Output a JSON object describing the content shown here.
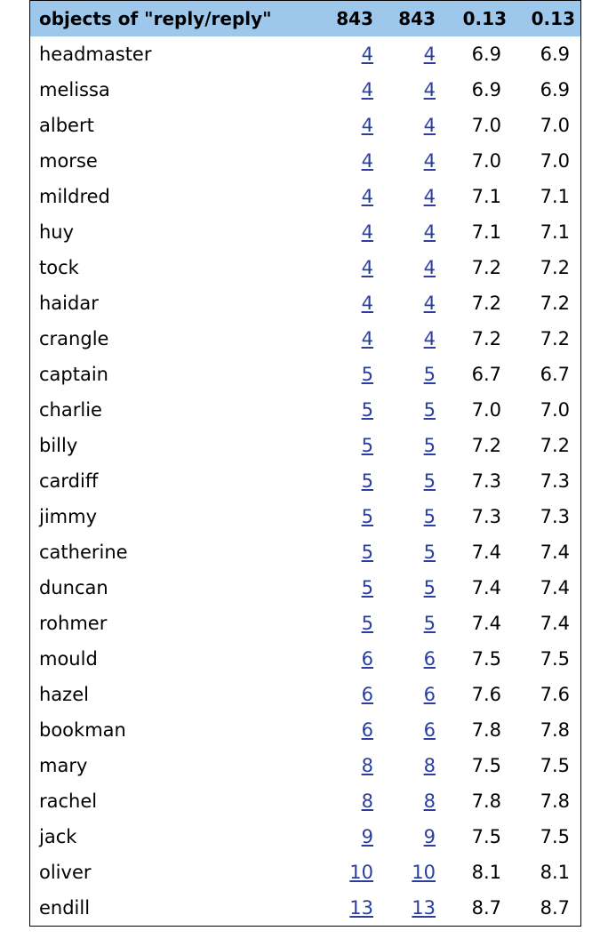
{
  "table": {
    "headers": [
      "objects of \"reply/reply\"",
      "843",
      "843",
      "0.13",
      "0.13"
    ],
    "link_color": "#2a3ea0",
    "header_bg": "#9ec7ec",
    "rows": [
      {
        "name": "headmaster",
        "n1": "4",
        "n2": "4",
        "v1": "6.9",
        "v2": "6.9"
      },
      {
        "name": "melissa",
        "n1": "4",
        "n2": "4",
        "v1": "6.9",
        "v2": "6.9"
      },
      {
        "name": "albert",
        "n1": "4",
        "n2": "4",
        "v1": "7.0",
        "v2": "7.0"
      },
      {
        "name": "morse",
        "n1": "4",
        "n2": "4",
        "v1": "7.0",
        "v2": "7.0"
      },
      {
        "name": "mildred",
        "n1": "4",
        "n2": "4",
        "v1": "7.1",
        "v2": "7.1"
      },
      {
        "name": "huy",
        "n1": "4",
        "n2": "4",
        "v1": "7.1",
        "v2": "7.1"
      },
      {
        "name": "tock",
        "n1": "4",
        "n2": "4",
        "v1": "7.2",
        "v2": "7.2"
      },
      {
        "name": "haidar",
        "n1": "4",
        "n2": "4",
        "v1": "7.2",
        "v2": "7.2"
      },
      {
        "name": "crangle",
        "n1": "4",
        "n2": "4",
        "v1": "7.2",
        "v2": "7.2"
      },
      {
        "name": "captain",
        "n1": "5",
        "n2": "5",
        "v1": "6.7",
        "v2": "6.7"
      },
      {
        "name": "charlie",
        "n1": "5",
        "n2": "5",
        "v1": "7.0",
        "v2": "7.0"
      },
      {
        "name": "billy",
        "n1": "5",
        "n2": "5",
        "v1": "7.2",
        "v2": "7.2"
      },
      {
        "name": "cardiff",
        "n1": "5",
        "n2": "5",
        "v1": "7.3",
        "v2": "7.3"
      },
      {
        "name": "jimmy",
        "n1": "5",
        "n2": "5",
        "v1": "7.3",
        "v2": "7.3"
      },
      {
        "name": "catherine",
        "n1": "5",
        "n2": "5",
        "v1": "7.4",
        "v2": "7.4"
      },
      {
        "name": "duncan",
        "n1": "5",
        "n2": "5",
        "v1": "7.4",
        "v2": "7.4"
      },
      {
        "name": "rohmer",
        "n1": "5",
        "n2": "5",
        "v1": "7.4",
        "v2": "7.4"
      },
      {
        "name": "mould",
        "n1": "6",
        "n2": "6",
        "v1": "7.5",
        "v2": "7.5"
      },
      {
        "name": "hazel",
        "n1": "6",
        "n2": "6",
        "v1": "7.6",
        "v2": "7.6"
      },
      {
        "name": "bookman",
        "n1": "6",
        "n2": "6",
        "v1": "7.8",
        "v2": "7.8"
      },
      {
        "name": "mary",
        "n1": "8",
        "n2": "8",
        "v1": "7.5",
        "v2": "7.5"
      },
      {
        "name": "rachel",
        "n1": "8",
        "n2": "8",
        "v1": "7.8",
        "v2": "7.8"
      },
      {
        "name": "jack",
        "n1": "9",
        "n2": "9",
        "v1": "7.5",
        "v2": "7.5"
      },
      {
        "name": "oliver",
        "n1": "10",
        "n2": "10",
        "v1": "8.1",
        "v2": "8.1"
      },
      {
        "name": "endill",
        "n1": "13",
        "n2": "13",
        "v1": "8.7",
        "v2": "8.7"
      }
    ]
  }
}
